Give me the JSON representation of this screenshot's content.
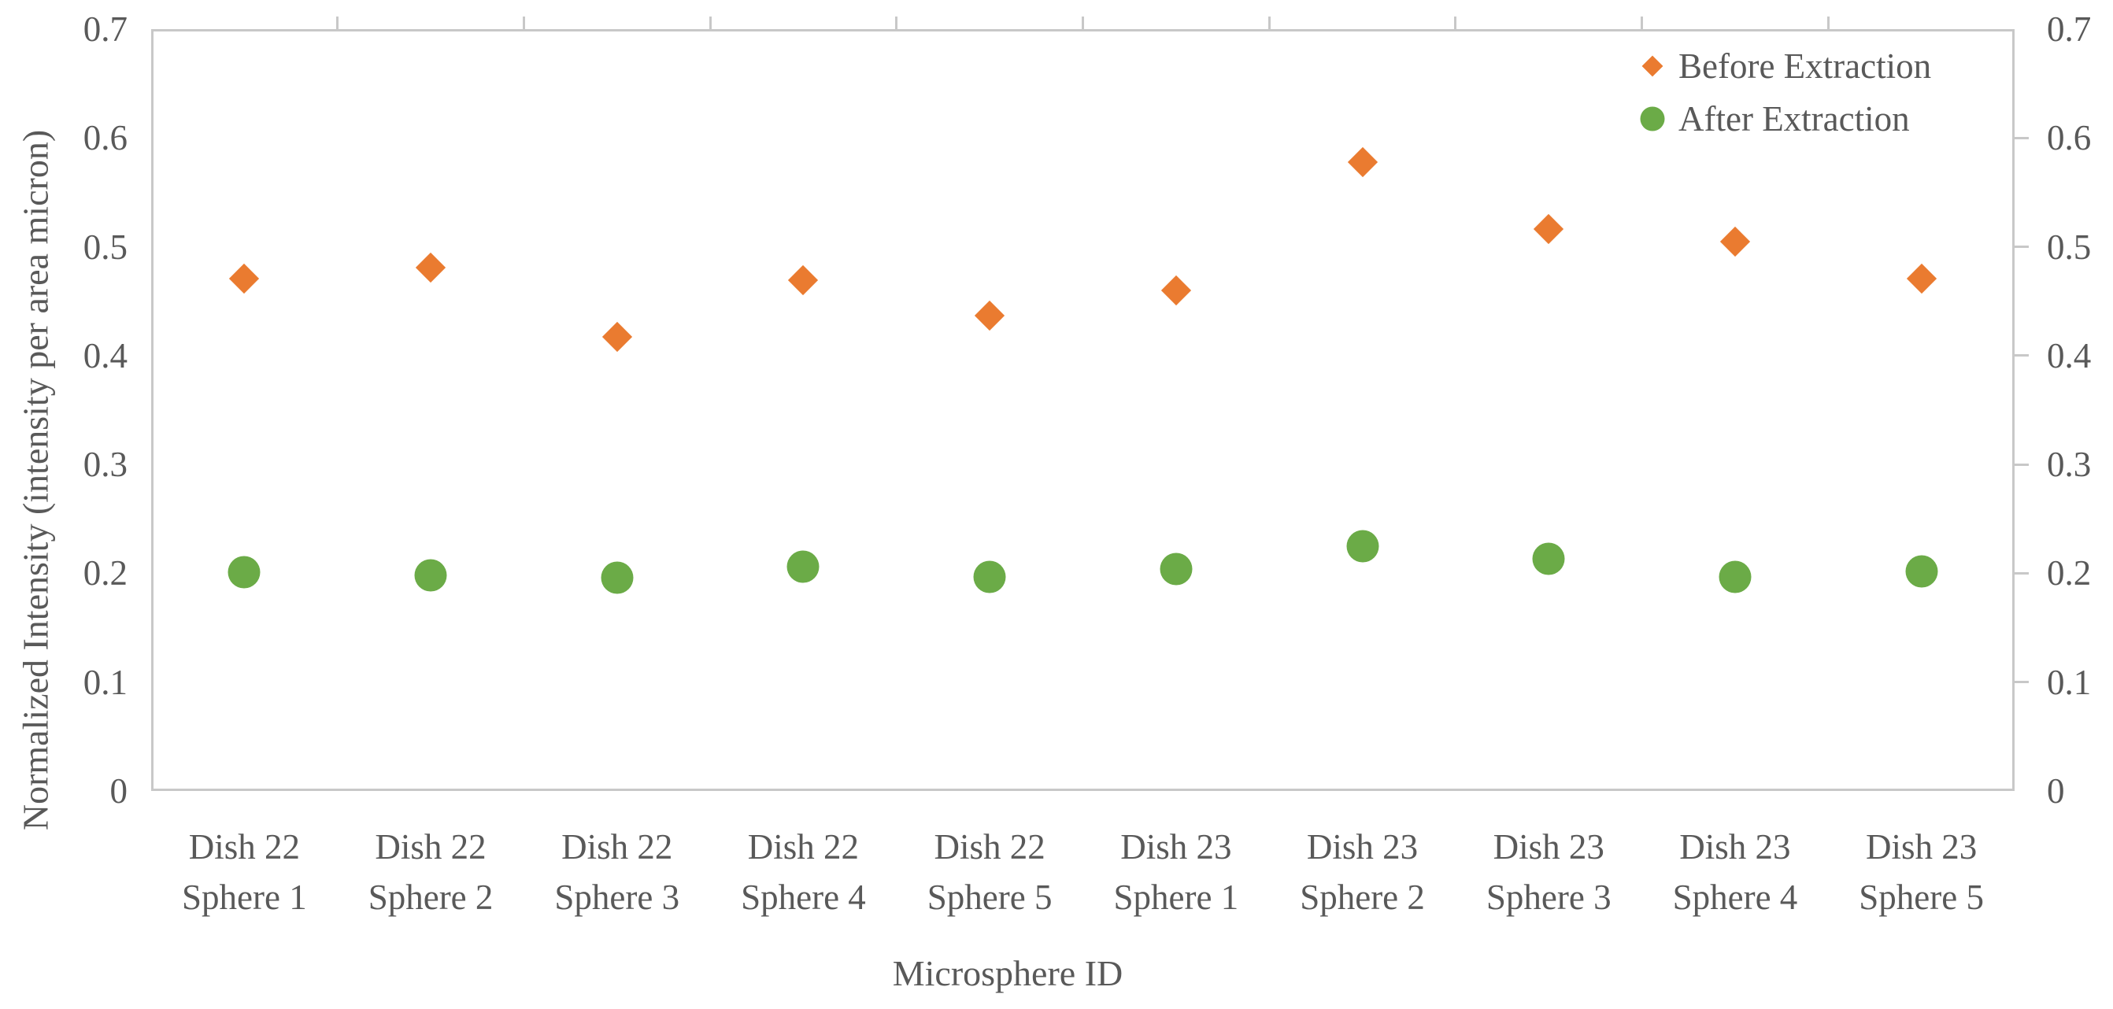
{
  "chart_data": {
    "type": "scatter",
    "title": "",
    "xlabel": "Microsphere ID",
    "ylabel": "Normalized Intensity (intensity per area micron)",
    "ylim": [
      0,
      0.7
    ],
    "yticks": [
      0.7,
      0.6,
      0.5,
      0.4,
      0.3,
      0.2,
      0.1,
      0
    ],
    "ytick_labels": [
      "0.7",
      "0.6",
      "0.5",
      "0.4",
      "0.3",
      "0.2",
      "0.1",
      "0"
    ],
    "dual_y_axis": true,
    "grid": false,
    "legend_position": "inside-top-right",
    "categories": [
      {
        "line1": "Dish 22",
        "line2": "Sphere 1"
      },
      {
        "line1": "Dish 22",
        "line2": "Sphere 2"
      },
      {
        "line1": "Dish 22",
        "line2": "Sphere 3"
      },
      {
        "line1": "Dish 22",
        "line2": "Sphere 4"
      },
      {
        "line1": "Dish 22",
        "line2": "Sphere 5"
      },
      {
        "line1": "Dish 23",
        "line2": "Sphere 1"
      },
      {
        "line1": "Dish 23",
        "line2": "Sphere 2"
      },
      {
        "line1": "Dish 23",
        "line2": "Sphere 3"
      },
      {
        "line1": "Dish 23",
        "line2": "Sphere 4"
      },
      {
        "line1": "Dish 23",
        "line2": "Sphere 5"
      }
    ],
    "series": [
      {
        "name": "Before Extraction",
        "marker": "diamond",
        "color": "#EA7B30",
        "values": [
          0.471,
          0.481,
          0.417,
          0.469,
          0.437,
          0.46,
          0.578,
          0.516,
          0.505,
          0.471
        ]
      },
      {
        "name": "After Extraction",
        "marker": "circle",
        "color": "#6BAB47",
        "values": [
          0.201,
          0.198,
          0.196,
          0.206,
          0.197,
          0.204,
          0.225,
          0.213,
          0.197,
          0.202
        ]
      }
    ]
  },
  "colors": {
    "text": "#595959",
    "axis_line": "#C8C8C8",
    "background": "#FFFFFF"
  }
}
